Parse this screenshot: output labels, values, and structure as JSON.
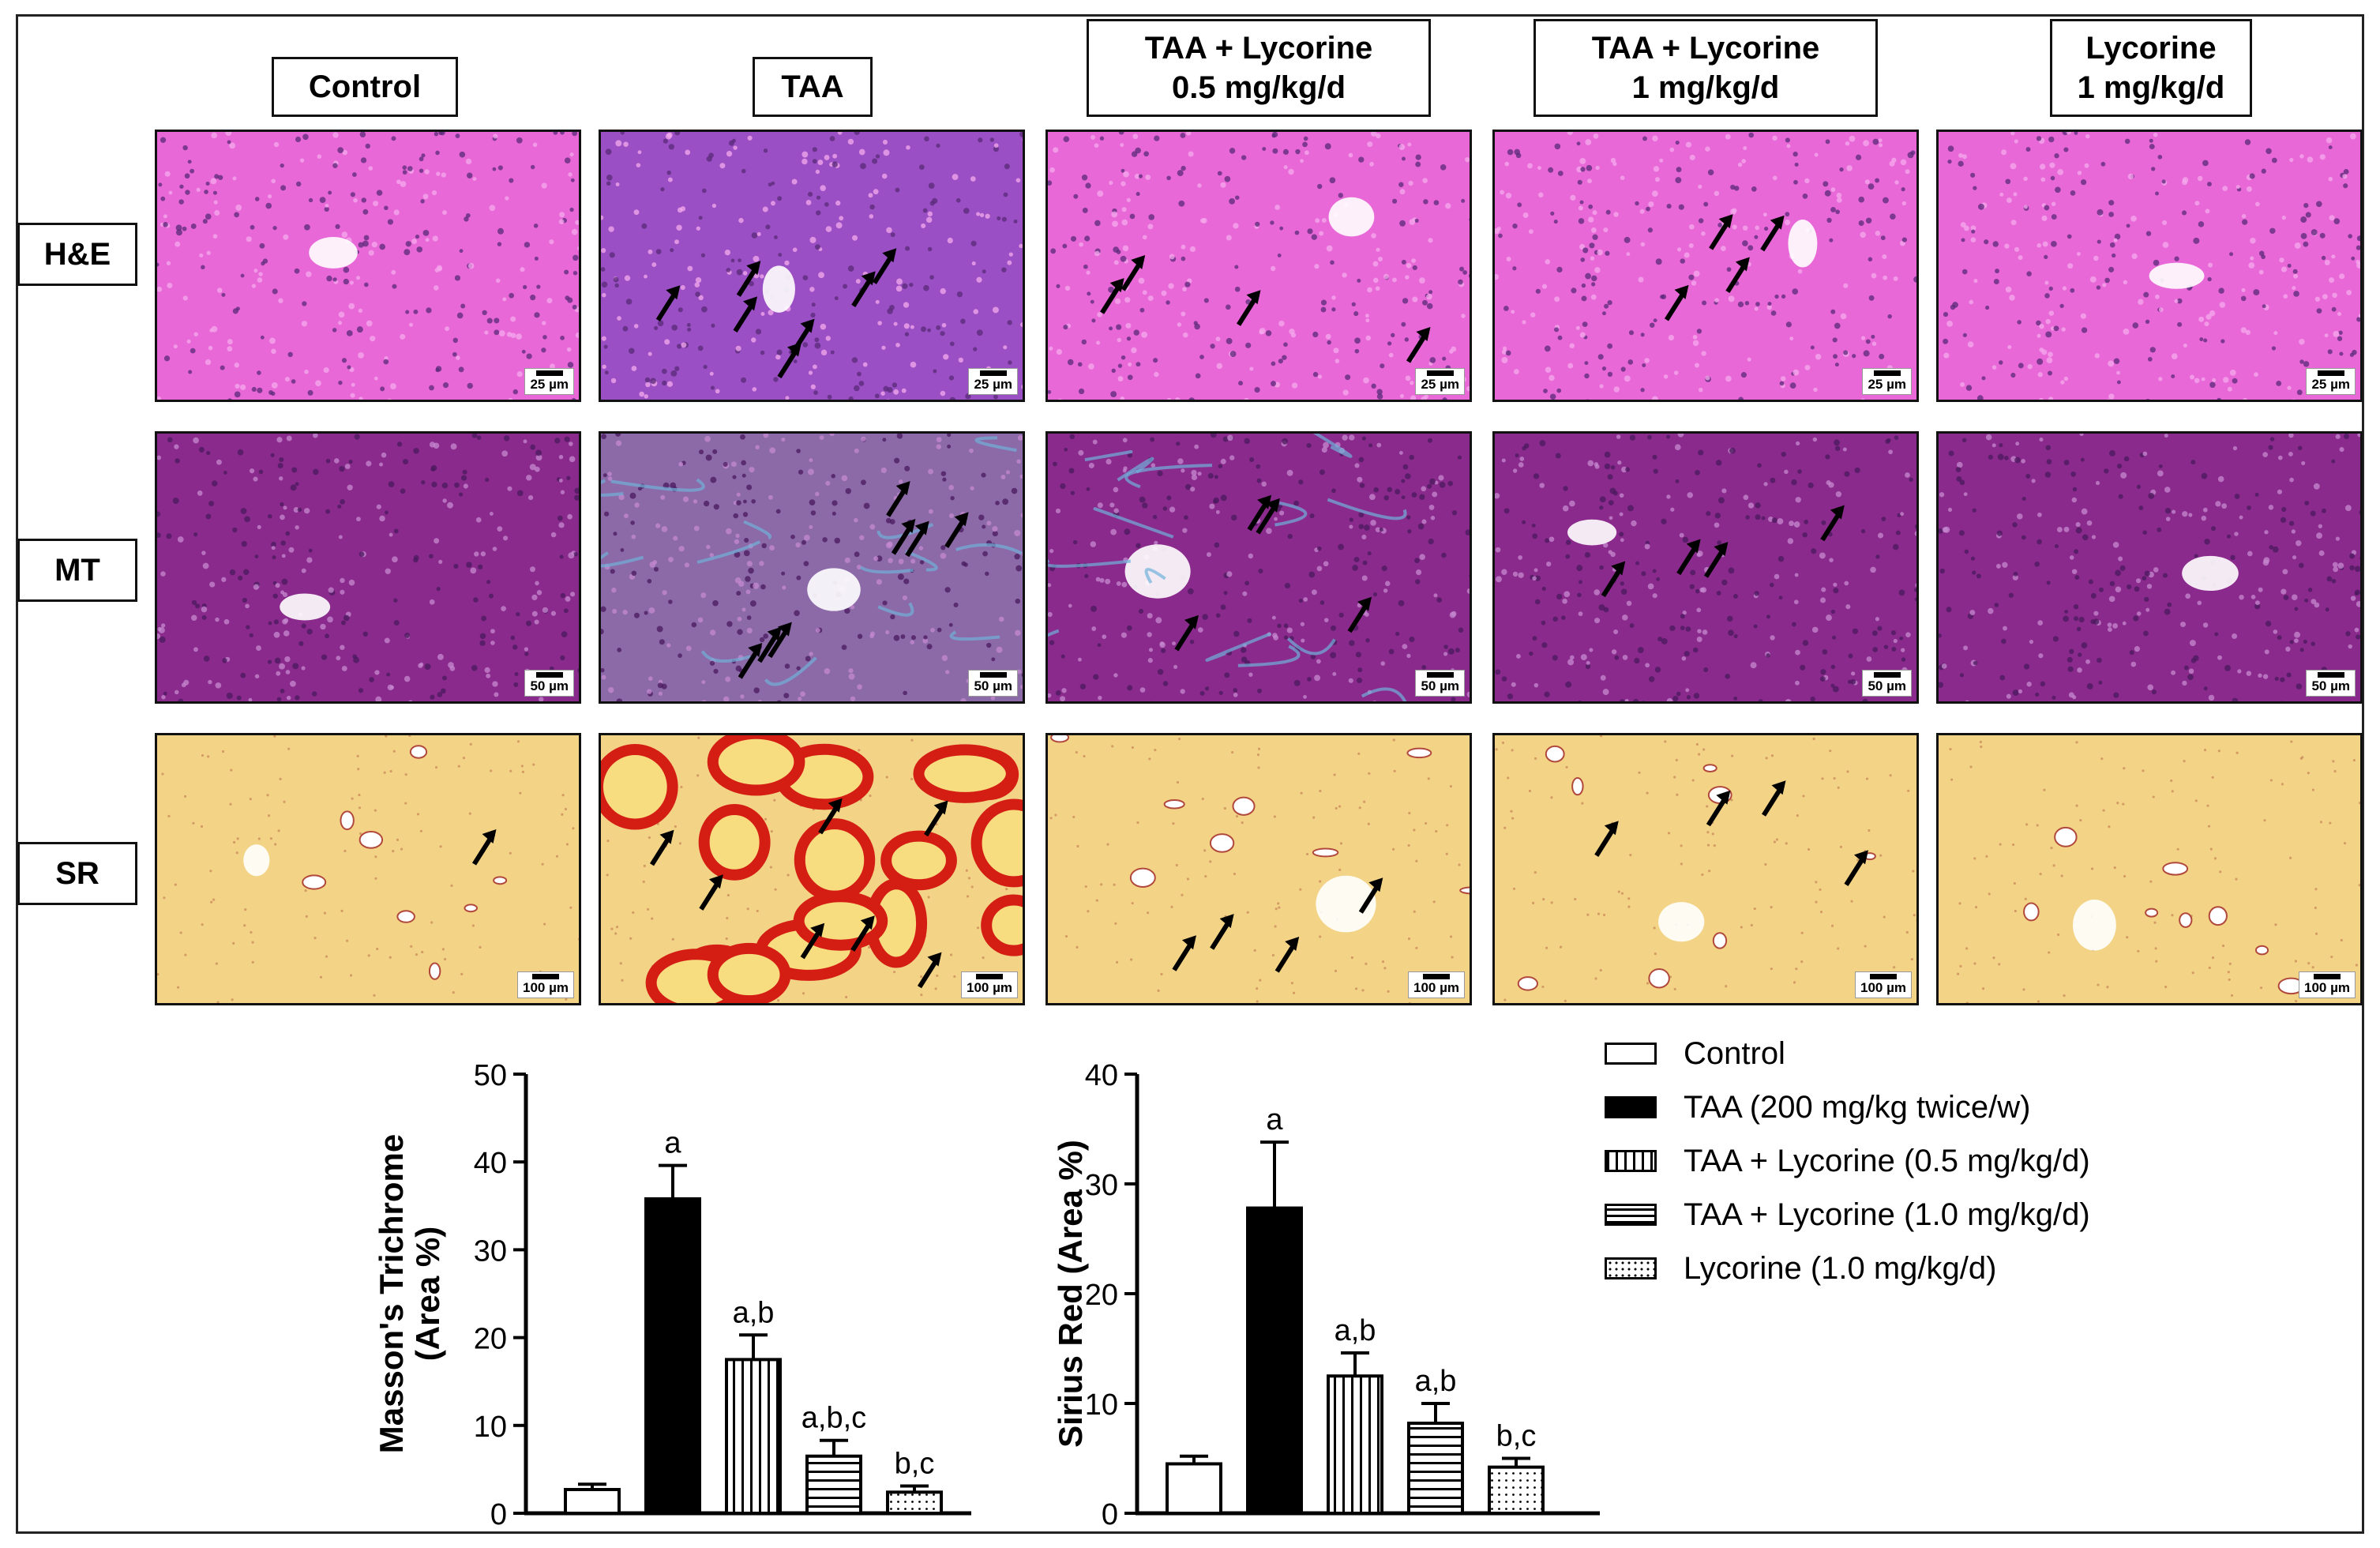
{
  "figure": {
    "column_headers": [
      {
        "line1": "Control",
        "line2": ""
      },
      {
        "line1": "TAA",
        "line2": ""
      },
      {
        "line1": "TAA + Lycorine",
        "line2": "0.5 mg/kg/d"
      },
      {
        "line1": "TAA + Lycorine",
        "line2": "1 mg/kg/d"
      },
      {
        "line1": "Lycorine",
        "line2": "1 mg/kg/d"
      }
    ],
    "rows": [
      {
        "label": "H&E",
        "scale": "25 µm",
        "tissue_color": "#e868d8"
      },
      {
        "label": "MT",
        "scale": "50 µm",
        "tissue_color": "#8a2a8c"
      },
      {
        "label": "SR",
        "scale": "100 µm",
        "tissue_color": "#f3d487"
      }
    ],
    "legend": [
      {
        "label": "Control",
        "pattern": "white"
      },
      {
        "label": "TAA (200 mg/kg twice/w)",
        "pattern": "black"
      },
      {
        "label": "TAA + Lycorine (0.5 mg/kg/d)",
        "pattern": "vertical"
      },
      {
        "label": "TAA + Lycorine (1.0 mg/kg/d)",
        "pattern": "horizontal"
      },
      {
        "label": "Lycorine (1.0 mg/kg/d)",
        "pattern": "dotted"
      }
    ]
  },
  "chart_data": [
    {
      "type": "bar",
      "ylabel": "Masson's Trichrome (Area %)",
      "ylabel_lines": [
        "Masson's Trichrome",
        "(Area %)"
      ],
      "ylim": [
        0,
        50
      ],
      "yticks": [
        0,
        10,
        20,
        30,
        40,
        50
      ],
      "values": [
        2.7,
        35.8,
        17.5,
        6.5,
        2.4
      ],
      "errors": [
        0.6,
        3.8,
        2.8,
        1.8,
        0.7
      ],
      "annotations": [
        "",
        "a",
        "a,b",
        "a,b,c",
        "b,c"
      ],
      "patterns": [
        "white",
        "black",
        "vertical",
        "horizontal",
        "dotted"
      ]
    },
    {
      "type": "bar",
      "ylabel": "Sirius Red (Area %)",
      "ylabel_lines": [
        "Sirius Red (Area %)"
      ],
      "ylim": [
        0,
        40
      ],
      "yticks": [
        0,
        10,
        20,
        30,
        40
      ],
      "values": [
        4.5,
        27.8,
        12.5,
        8.2,
        4.2
      ],
      "errors": [
        0.7,
        6.0,
        2.1,
        1.8,
        0.8
      ],
      "annotations": [
        "",
        "a",
        "a,b",
        "a,b",
        "b,c"
      ],
      "patterns": [
        "white",
        "black",
        "vertical",
        "horizontal",
        "dotted"
      ]
    }
  ]
}
